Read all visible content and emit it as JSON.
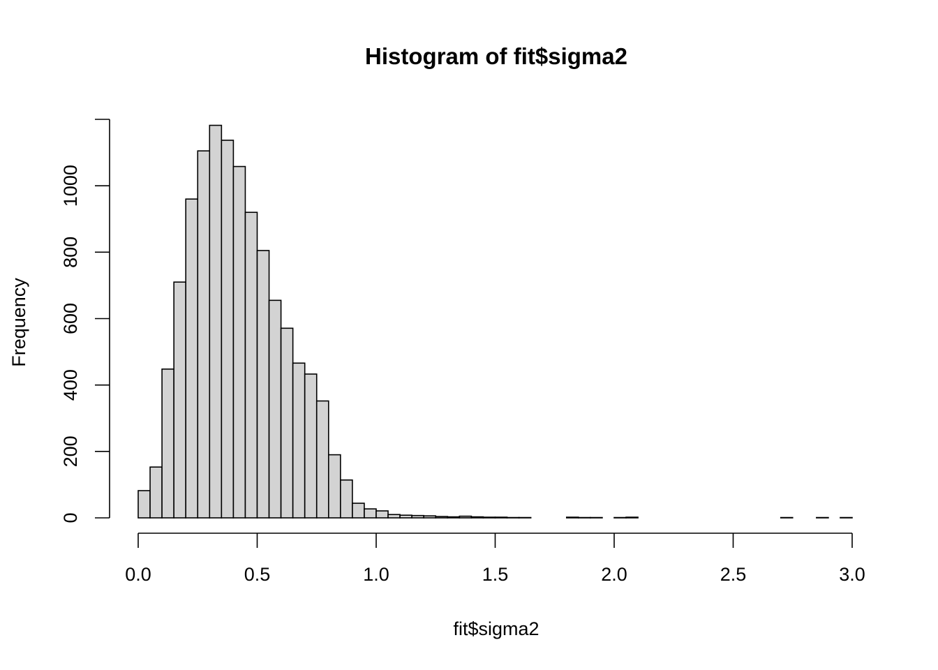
{
  "chart_data": {
    "type": "bar",
    "title": "Histogram of fit$sigma2",
    "xlabel": "fit$sigma2",
    "ylabel": "Frequency",
    "xlim": [
      0,
      3
    ],
    "ylim": [
      0,
      1200
    ],
    "x_ticks": [
      0,
      0.5,
      1,
      1.5,
      2,
      2.5,
      3
    ],
    "x_tick_labels": [
      "0.0",
      "0.5",
      "1.0",
      "1.5",
      "2.0",
      "2.5",
      "3.0"
    ],
    "y_ticks": [
      0,
      200,
      400,
      600,
      800,
      1000
    ],
    "y_tick_labels": [
      "0",
      "200",
      "400",
      "600",
      "800",
      "1000"
    ],
    "y_axis_top": 1200,
    "bin_width": 0.05,
    "bin_starts": [
      0.0,
      0.05,
      0.1,
      0.15,
      0.2,
      0.25,
      0.3,
      0.35,
      0.4,
      0.45,
      0.5,
      0.55,
      0.6,
      0.65,
      0.7,
      0.75,
      0.8,
      0.85,
      0.9,
      0.95,
      1.0,
      1.05,
      1.1,
      1.15,
      1.2,
      1.25,
      1.3,
      1.35,
      1.4,
      1.45,
      1.5,
      1.55,
      1.6,
      1.65,
      1.7,
      1.75,
      1.8,
      1.85,
      1.9,
      1.95,
      2.0,
      2.05,
      2.1,
      2.15,
      2.2,
      2.25,
      2.3,
      2.35,
      2.4,
      2.45,
      2.5,
      2.55,
      2.6,
      2.65,
      2.7,
      2.75,
      2.8,
      2.85,
      2.9,
      2.95
    ],
    "values": [
      82,
      153,
      448,
      710,
      960,
      1105,
      1182,
      1137,
      1058,
      920,
      805,
      655,
      571,
      466,
      433,
      352,
      190,
      114,
      44,
      27,
      21,
      10,
      8,
      7,
      6,
      4,
      3,
      5,
      3,
      2,
      2,
      1,
      1,
      0,
      0,
      0,
      2,
      1,
      1,
      0,
      1,
      2,
      0,
      0,
      0,
      0,
      0,
      0,
      0,
      0,
      0,
      0,
      0,
      0,
      1,
      0,
      0,
      1,
      0,
      1
    ],
    "bar_color": "#d3d3d3",
    "grid": false
  }
}
